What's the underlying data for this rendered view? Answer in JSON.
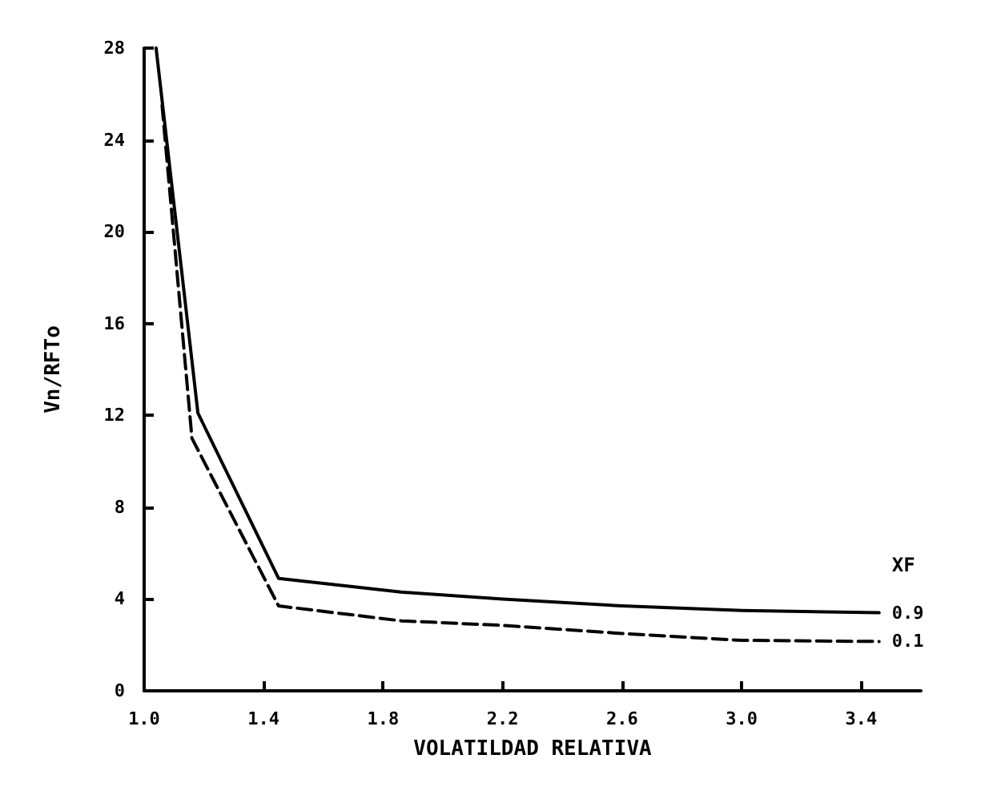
{
  "chart_data": {
    "type": "line",
    "xlabel": "VOLATILDAD RELATIVA",
    "ylabel": "Vn/RFTo",
    "legend_title": "XF",
    "legend": "right",
    "grid": false,
    "marker": "none",
    "xlim": [
      1.0,
      3.6
    ],
    "xticks": [
      {
        "value": 1,
        "label": "1.0"
      },
      1.4,
      1.8,
      2.2,
      2.6,
      {
        "value": 3,
        "label": "3.0"
      },
      3.4
    ],
    "ylim": [
      0,
      28
    ],
    "yticks": [
      0,
      4,
      8,
      12,
      16,
      20,
      24,
      28
    ],
    "series": [
      {
        "name": "0.9",
        "color": "#000000",
        "line_style": "solid",
        "x": [
          1.04,
          1.18,
          1.45,
          1.86,
          2.2,
          2.6,
          3.0,
          3.46
        ],
        "values": [
          28,
          12.1,
          4.9,
          4.3,
          4.0,
          3.7,
          3.5,
          3.4
        ]
      },
      {
        "name": "0.1",
        "color": "#000000",
        "line_style": "dashed",
        "x": [
          1.06,
          1.16,
          1.45,
          1.86,
          2.2,
          2.6,
          3.0,
          3.46
        ],
        "values": [
          25.5,
          11.0,
          3.7,
          3.05,
          2.85,
          2.5,
          2.2,
          2.15
        ]
      }
    ]
  }
}
